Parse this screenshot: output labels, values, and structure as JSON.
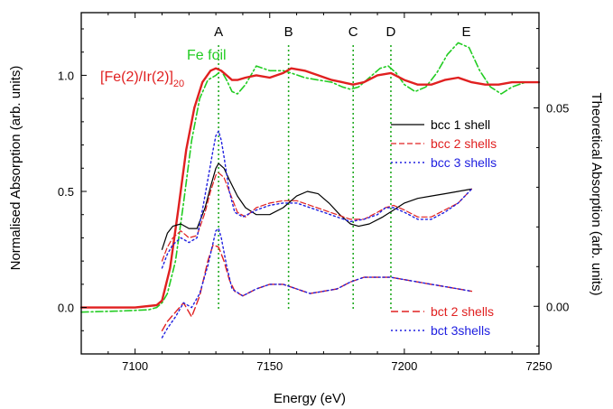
{
  "chart_data": {
    "type": "line",
    "title": "",
    "xlabel": "Energy (eV)",
    "ylabel": "Normalised Absorption (arb. units)",
    "y2label": "Theoretical Absorption (arb. units)",
    "xlim": [
      7080,
      7250
    ],
    "ylim": [
      -0.2,
      1.27
    ],
    "y2lim": [
      -0.012,
      0.074
    ],
    "xticks": [
      "7100",
      "7150",
      "7200",
      "7250"
    ],
    "yticks": [
      "0.0",
      "0.5",
      "1.0"
    ],
    "y2ticks": [
      "0.00",
      "0.05"
    ],
    "grid": false,
    "annotations": [
      {
        "label": "A",
        "x": 7131
      },
      {
        "label": "B",
        "x": 7157
      },
      {
        "label": "C",
        "x": 7181
      },
      {
        "label": "D",
        "x": 7195
      },
      {
        "label": "E",
        "x": 7223
      }
    ],
    "experiment_labels": [
      {
        "text": "Fe foil",
        "color": "#22cc22"
      },
      {
        "text": "[Fe(2)/Ir(2)]",
        "sub": "20",
        "color": "#e02020"
      }
    ],
    "series": [
      {
        "name": "Fe foil",
        "color": "#22cc22",
        "dash": "8,3,2,3",
        "width": 1.6,
        "x": [
          7080,
          7095,
          7105,
          7108,
          7110,
          7112,
          7115,
          7118,
          7121,
          7124,
          7127,
          7130,
          7132,
          7134,
          7136,
          7138,
          7141,
          7145,
          7150,
          7155,
          7158,
          7163,
          7168,
          7173,
          7177,
          7180,
          7183,
          7187,
          7191,
          7194,
          7197,
          7200,
          7204,
          7208,
          7212,
          7216,
          7220,
          7224,
          7228,
          7232,
          7236,
          7240,
          7245,
          7250
        ],
        "y": [
          -0.02,
          -0.015,
          -0.01,
          0.0,
          0.02,
          0.06,
          0.2,
          0.45,
          0.72,
          0.9,
          0.98,
          1.0,
          1.02,
          0.98,
          0.93,
          0.92,
          0.96,
          1.04,
          1.02,
          1.02,
          1.01,
          0.99,
          0.98,
          0.97,
          0.95,
          0.94,
          0.95,
          0.99,
          1.03,
          1.04,
          1.01,
          0.96,
          0.93,
          0.95,
          1.01,
          1.09,
          1.14,
          1.12,
          1.02,
          0.95,
          0.92,
          0.95,
          0.97,
          0.97
        ]
      },
      {
        "name": "[Fe(2)/Ir(2)]20",
        "color": "#e02020",
        "dash": "",
        "width": 2.4,
        "x": [
          7080,
          7100,
          7108,
          7110,
          7113,
          7116,
          7119,
          7122,
          7125,
          7128,
          7130,
          7132,
          7134,
          7136,
          7138,
          7141,
          7145,
          7150,
          7155,
          7158,
          7163,
          7168,
          7173,
          7177,
          7181,
          7185,
          7190,
          7195,
          7200,
          7205,
          7210,
          7215,
          7220,
          7225,
          7230,
          7235,
          7240,
          7245,
          7250
        ],
        "y": [
          0.0,
          0.0,
          0.01,
          0.03,
          0.17,
          0.42,
          0.68,
          0.86,
          0.97,
          1.02,
          1.03,
          1.02,
          1.0,
          0.98,
          0.98,
          0.99,
          1.0,
          0.99,
          1.01,
          1.03,
          1.02,
          1.0,
          0.98,
          0.97,
          0.96,
          0.97,
          1.0,
          1.01,
          0.98,
          0.96,
          0.96,
          0.98,
          0.99,
          0.97,
          0.96,
          0.96,
          0.97,
          0.97,
          0.97
        ]
      },
      {
        "name": "bcc  1 shell",
        "color": "#000000",
        "dash": "",
        "width": 1.2,
        "x": [
          7110,
          7112,
          7114,
          7117,
          7120,
          7123,
          7126,
          7128,
          7130,
          7131,
          7133,
          7135,
          7138,
          7141,
          7145,
          7150,
          7155,
          7160,
          7164,
          7168,
          7172,
          7176,
          7180,
          7183,
          7187,
          7192,
          7196,
          7200,
          7205,
          7210,
          7215,
          7220,
          7225
        ],
        "y": [
          0.25,
          0.32,
          0.35,
          0.36,
          0.34,
          0.34,
          0.43,
          0.52,
          0.6,
          0.62,
          0.6,
          0.55,
          0.48,
          0.43,
          0.4,
          0.4,
          0.43,
          0.48,
          0.5,
          0.49,
          0.45,
          0.4,
          0.36,
          0.35,
          0.36,
          0.39,
          0.42,
          0.45,
          0.47,
          0.48,
          0.49,
          0.5,
          0.51
        ]
      },
      {
        "name": "bcc 2 shells",
        "color": "#e02020",
        "dash": "6,3",
        "width": 1.2,
        "x": [
          7110,
          7112,
          7114,
          7117,
          7120,
          7123,
          7126,
          7128,
          7130,
          7131,
          7133,
          7135,
          7138,
          7141,
          7145,
          7150,
          7155,
          7160,
          7165,
          7170,
          7175,
          7180,
          7185,
          7190,
          7193,
          7196,
          7200,
          7205,
          7210,
          7215,
          7220,
          7225
        ],
        "y": [
          0.2,
          0.26,
          0.3,
          0.33,
          0.3,
          0.31,
          0.41,
          0.5,
          0.57,
          0.58,
          0.56,
          0.5,
          0.41,
          0.39,
          0.43,
          0.45,
          0.46,
          0.46,
          0.44,
          0.42,
          0.4,
          0.38,
          0.38,
          0.41,
          0.43,
          0.44,
          0.42,
          0.39,
          0.39,
          0.42,
          0.45,
          0.51
        ]
      },
      {
        "name": "bcc 3 shells",
        "color": "#2020e0",
        "dash": "2,3",
        "width": 1.4,
        "x": [
          7110,
          7112,
          7114,
          7117,
          7120,
          7123,
          7125,
          7127,
          7129,
          7130,
          7131,
          7132,
          7133,
          7135,
          7137,
          7140,
          7145,
          7150,
          7155,
          7160,
          7165,
          7170,
          7175,
          7180,
          7185,
          7190,
          7193,
          7196,
          7200,
          7205,
          7210,
          7215,
          7220,
          7225
        ],
        "y": [
          0.17,
          0.23,
          0.27,
          0.3,
          0.28,
          0.3,
          0.42,
          0.55,
          0.68,
          0.74,
          0.76,
          0.72,
          0.65,
          0.5,
          0.41,
          0.39,
          0.42,
          0.44,
          0.45,
          0.45,
          0.43,
          0.41,
          0.39,
          0.37,
          0.38,
          0.4,
          0.43,
          0.43,
          0.41,
          0.38,
          0.38,
          0.41,
          0.45,
          0.51
        ]
      },
      {
        "name": "bct 2 shells",
        "color": "#e02020",
        "dash": "8,4",
        "width": 1.4,
        "x": [
          7110,
          7112,
          7115,
          7118,
          7121,
          7124,
          7127,
          7129,
          7131,
          7133,
          7135,
          7137,
          7140,
          7145,
          7150,
          7155,
          7160,
          7165,
          7170,
          7175,
          7180,
          7185,
          7190,
          7195,
          7200,
          7205,
          7210,
          7215,
          7220,
          7225
        ],
        "y": [
          -0.1,
          -0.06,
          -0.02,
          0.02,
          -0.04,
          0.05,
          0.2,
          0.27,
          0.26,
          0.2,
          0.12,
          0.07,
          0.05,
          0.08,
          0.1,
          0.1,
          0.08,
          0.06,
          0.07,
          0.08,
          0.11,
          0.13,
          0.13,
          0.13,
          0.12,
          0.11,
          0.1,
          0.09,
          0.08,
          0.07
        ]
      },
      {
        "name": "bct 3shells",
        "color": "#2020e0",
        "dash": "2,3",
        "width": 1.4,
        "x": [
          7110,
          7112,
          7115,
          7118,
          7121,
          7124,
          7127,
          7129,
          7130,
          7131,
          7132,
          7134,
          7136,
          7140,
          7145,
          7150,
          7155,
          7160,
          7165,
          7170,
          7175,
          7180,
          7185,
          7190,
          7195,
          7200,
          7205,
          7210,
          7215,
          7220,
          7225
        ],
        "y": [
          -0.13,
          -0.09,
          -0.04,
          0.02,
          0.0,
          0.06,
          0.18,
          0.28,
          0.33,
          0.34,
          0.3,
          0.18,
          0.08,
          0.05,
          0.08,
          0.1,
          0.1,
          0.08,
          0.06,
          0.07,
          0.08,
          0.11,
          0.13,
          0.13,
          0.13,
          0.12,
          0.11,
          0.1,
          0.09,
          0.08,
          0.07
        ]
      }
    ],
    "legend": [
      {
        "series": 2,
        "label": "bcc  1 shell",
        "color": "#000000",
        "group": "upper"
      },
      {
        "series": 3,
        "label": "bcc 2 shells",
        "color": "#e02020",
        "group": "upper"
      },
      {
        "series": 4,
        "label": "bcc 3 shells",
        "color": "#2020e0",
        "group": "upper"
      },
      {
        "series": 5,
        "label": "bct 2 shells",
        "color": "#e02020",
        "group": "lower"
      },
      {
        "series": 6,
        "label": "bct 3shells",
        "color": "#2020e0",
        "group": "lower"
      }
    ]
  }
}
